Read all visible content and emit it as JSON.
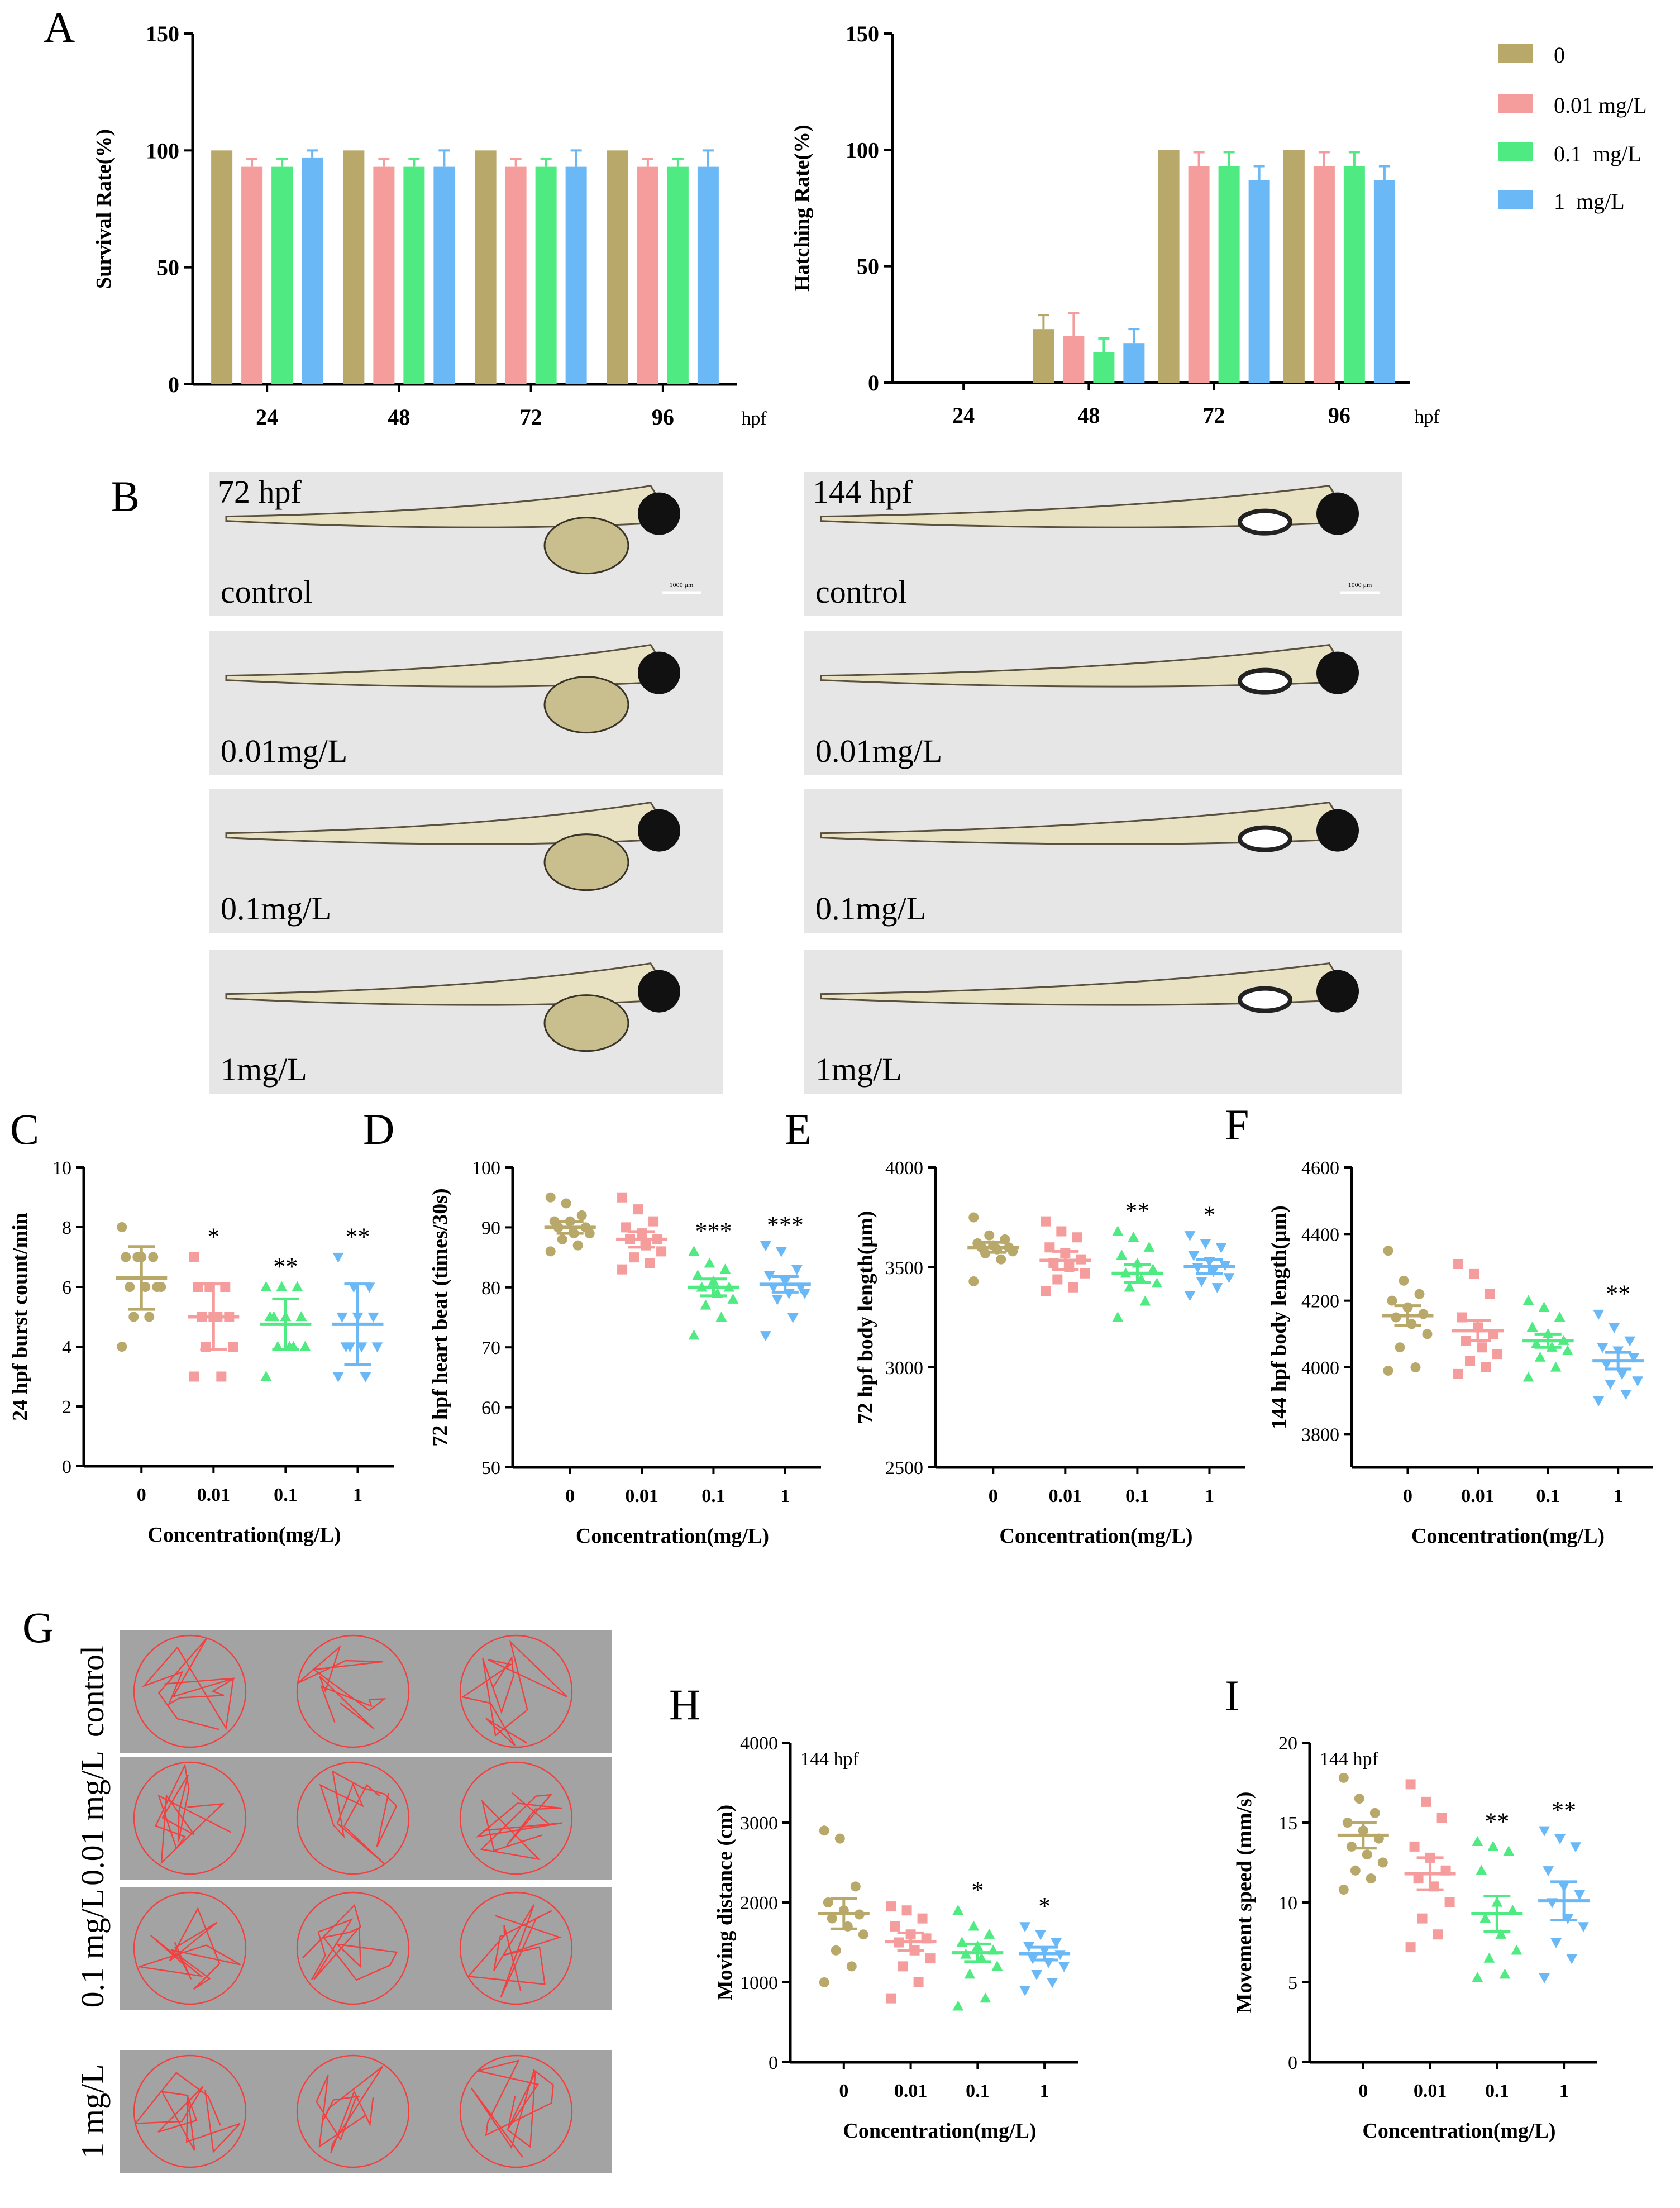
{
  "colors": {
    "g0": "#b8a96a",
    "g001": "#f59c9c",
    "g01": "#4fea82",
    "g1": "#6ab8f5"
  },
  "panels": {
    "A": "A",
    "B": "B",
    "C": "C",
    "D": "D",
    "E": "E",
    "F": "F",
    "G": "G",
    "H": "H",
    "I": "I"
  },
  "legend": {
    "items": [
      "0",
      "0.01 mg/L",
      "0.1  mg/L",
      "1  mg/L"
    ]
  },
  "panelB": {
    "timepoints": [
      "72 hpf",
      "144 hpf"
    ],
    "groups": [
      "control",
      "0.01mg/L",
      "0.1mg/L",
      "1mg/L"
    ],
    "scalebar": "1000 μm"
  },
  "panelG": {
    "groups": [
      "control",
      "0.01 mg/L",
      "0.1 mg/L",
      "1 mg/L"
    ]
  },
  "chart_data": [
    {
      "id": "A1",
      "type": "bar",
      "categories": [
        "24",
        "48",
        "72",
        "96"
      ],
      "xunit": "hpf",
      "ylabel": "Survival Rate(%)",
      "ylim": [
        0,
        150
      ],
      "yticks": [
        0,
        50,
        100,
        150
      ],
      "series": [
        {
          "name": "0",
          "values": [
            100,
            100,
            100,
            100
          ],
          "err": [
            0,
            0,
            0,
            0
          ]
        },
        {
          "name": "0.01 mg/L",
          "values": [
            93,
            93,
            93,
            93
          ],
          "err": [
            3.5,
            3.5,
            3.5,
            3.5
          ]
        },
        {
          "name": "0.1  mg/L",
          "values": [
            93,
            93,
            93,
            93
          ],
          "err": [
            3.5,
            3.5,
            3.5,
            3.5
          ]
        },
        {
          "name": "1  mg/L",
          "values": [
            97,
            93,
            93,
            93
          ],
          "err": [
            3,
            7,
            7,
            7
          ]
        }
      ]
    },
    {
      "id": "A2",
      "type": "bar",
      "categories": [
        "24",
        "48",
        "72",
        "96"
      ],
      "xunit": "hpf",
      "ylabel": "Hatching Rate(%)",
      "ylim": [
        0,
        150
      ],
      "yticks": [
        0,
        50,
        100,
        150
      ],
      "series": [
        {
          "name": "0",
          "values": [
            0,
            23,
            100,
            100
          ],
          "err": [
            0,
            6,
            0,
            0
          ]
        },
        {
          "name": "0.01 mg/L",
          "values": [
            0,
            20,
            93,
            93
          ],
          "err": [
            0,
            10,
            6,
            6
          ]
        },
        {
          "name": "0.1  mg/L",
          "values": [
            0,
            13,
            93,
            93
          ],
          "err": [
            0,
            6,
            6,
            6
          ]
        },
        {
          "name": "1  mg/L",
          "values": [
            0,
            17,
            87,
            87
          ],
          "err": [
            0,
            6,
            6,
            6
          ]
        }
      ]
    },
    {
      "id": "C",
      "type": "scatter",
      "categories": [
        "0",
        "0.01",
        "0.1",
        "1"
      ],
      "ylabel": "24 hpf burst count/min",
      "xlabel": "Concentration(mg/L)",
      "ylim": [
        0,
        10
      ],
      "yticks": [
        0,
        2,
        4,
        6,
        8,
        10
      ],
      "means": [
        6.3,
        5.0,
        4.75,
        4.75
      ],
      "err": [
        1.05,
        1.1,
        0.85,
        1.35
      ],
      "sig": [
        "",
        "*",
        "**",
        "**"
      ],
      "points": [
        [
          8,
          7,
          7,
          7,
          7,
          6,
          6,
          6,
          6,
          5,
          5,
          4
        ],
        [
          7,
          6,
          6,
          6,
          5,
          5,
          5,
          5,
          4,
          4,
          3,
          3
        ],
        [
          6,
          6,
          6,
          5,
          5,
          5,
          5,
          4,
          4,
          4,
          4,
          3
        ],
        [
          7,
          6,
          6,
          5,
          5,
          5,
          4,
          4,
          4,
          4,
          3,
          3
        ]
      ]
    },
    {
      "id": "D",
      "type": "scatter",
      "categories": [
        "0",
        "0.01",
        "0.1",
        "1"
      ],
      "ylabel": "72 hpf heart beat (times/30s)",
      "xlabel": "Concentration(mg/L)",
      "ylim": [
        50,
        100
      ],
      "yticks": [
        50,
        60,
        70,
        80,
        90,
        100
      ],
      "means": [
        90,
        88,
        80,
        80.5
      ],
      "err": [
        1.0,
        1.3,
        1.4,
        1.3
      ],
      "sig": [
        "",
        "",
        "***",
        "***"
      ],
      "points": [
        [
          95,
          94,
          92,
          91,
          91,
          90,
          90,
          89,
          89,
          88,
          87,
          86
        ],
        [
          95,
          93,
          91,
          90,
          89,
          88,
          88,
          87,
          86,
          85,
          84,
          83
        ],
        [
          86,
          84,
          83,
          82,
          81,
          80,
          80,
          79,
          78,
          77,
          75,
          72
        ],
        [
          87,
          86,
          83,
          82,
          81,
          80,
          80,
          79,
          79,
          78,
          75,
          72
        ]
      ]
    },
    {
      "id": "E",
      "type": "scatter",
      "categories": [
        "0",
        "0.01",
        "0.1",
        "1"
      ],
      "ylabel": "72 hpf body length(μm)",
      "xlabel": "Concentration(mg/L)",
      "ylim": [
        2500,
        4000
      ],
      "yticks": [
        2500,
        3000,
        3500,
        4000
      ],
      "means": [
        3600,
        3535,
        3470,
        3505
      ],
      "err": [
        25,
        45,
        45,
        35
      ],
      "sig": [
        "",
        "",
        "**",
        "*"
      ],
      "points": [
        [
          3750,
          3660,
          3640,
          3620,
          3610,
          3600,
          3600,
          3590,
          3580,
          3570,
          3540,
          3430
        ],
        [
          3730,
          3680,
          3650,
          3600,
          3570,
          3540,
          3520,
          3500,
          3470,
          3440,
          3400,
          3380
        ],
        [
          3680,
          3650,
          3600,
          3560,
          3520,
          3490,
          3470,
          3440,
          3420,
          3400,
          3330,
          3250
        ],
        [
          3660,
          3620,
          3600,
          3560,
          3530,
          3510,
          3500,
          3480,
          3450,
          3430,
          3400,
          3360
        ]
      ]
    },
    {
      "id": "F",
      "type": "scatter",
      "categories": [
        "0",
        "0.01",
        "0.1",
        "1"
      ],
      "ylabel": "144 hpf body length(μm)",
      "xlabel": "Concentration(mg/L)",
      "ylim": [
        3700,
        4600
      ],
      "yticks": [
        3800,
        4000,
        4200,
        4400,
        4600
      ],
      "means": [
        4155,
        4110,
        4080,
        4020
      ],
      "err": [
        30,
        30,
        20,
        25
      ],
      "sig": [
        "",
        "",
        "",
        "**"
      ],
      "points": [
        [
          4350,
          4260,
          4220,
          4200,
          4180,
          4160,
          4150,
          4130,
          4100,
          4060,
          4000,
          3990
        ],
        [
          4310,
          4280,
          4220,
          4150,
          4120,
          4100,
          4080,
          4060,
          4040,
          4020,
          4000,
          3980
        ],
        [
          4200,
          4180,
          4150,
          4120,
          4100,
          4080,
          4070,
          4060,
          4050,
          4030,
          4000,
          3970
        ],
        [
          4160,
          4120,
          4080,
          4060,
          4050,
          4030,
          4010,
          3980,
          3960,
          3950,
          3920,
          3900
        ]
      ]
    },
    {
      "id": "H",
      "type": "scatter",
      "categories": [
        "0",
        "0.01",
        "0.1",
        "1"
      ],
      "ylabel": "Moving distance (cm)",
      "xlabel": "Concentration(mg/L)",
      "annotation": "144 hpf",
      "ylim": [
        0,
        4000
      ],
      "yticks": [
        0,
        1000,
        2000,
        3000,
        4000
      ],
      "means": [
        1860,
        1510,
        1370,
        1360
      ],
      "err": [
        190,
        110,
        110,
        80
      ],
      "sig": [
        "",
        "",
        "*",
        "*"
      ],
      "points": [
        [
          2900,
          2800,
          2200,
          2000,
          1900,
          1850,
          1800,
          1700,
          1600,
          1400,
          1200,
          1000
        ],
        [
          1950,
          1900,
          1800,
          1700,
          1600,
          1550,
          1500,
          1400,
          1300,
          1200,
          1000,
          800
        ],
        [
          1900,
          1700,
          1600,
          1500,
          1450,
          1400,
          1350,
          1300,
          1200,
          1100,
          800,
          700
        ],
        [
          1700,
          1600,
          1500,
          1450,
          1400,
          1350,
          1300,
          1250,
          1200,
          1100,
          1000,
          900
        ]
      ]
    },
    {
      "id": "I",
      "type": "scatter",
      "categories": [
        "0",
        "0.01",
        "0.1",
        "1"
      ],
      "ylabel": "Movement speed (mm/s)",
      "xlabel": "Concentration(mg/L)",
      "annotation": "144 hpf",
      "ylim": [
        0,
        20
      ],
      "yticks": [
        0,
        5,
        10,
        15,
        20
      ],
      "means": [
        14.2,
        11.8,
        9.3,
        10.1
      ],
      "err": [
        0.8,
        1.0,
        1.1,
        1.2
      ],
      "sig": [
        "",
        "",
        "**",
        "**"
      ],
      "points": [
        [
          17.8,
          16.5,
          15.6,
          15.0,
          14.5,
          14.0,
          13.5,
          13.0,
          12.5,
          12.0,
          11.5,
          10.8
        ],
        [
          17.4,
          16.3,
          15.3,
          13.5,
          12.8,
          12.0,
          11.5,
          11.0,
          10.0,
          9.0,
          8.0,
          7.2
        ],
        [
          13.8,
          13.5,
          13.2,
          12.0,
          10.0,
          9.5,
          9.0,
          8.0,
          7.0,
          6.5,
          5.5,
          5.3
        ],
        [
          14.5,
          14.0,
          13.5,
          12.0,
          11.0,
          10.5,
          10.0,
          9.0,
          8.5,
          7.5,
          6.5,
          5.3
        ]
      ]
    }
  ]
}
